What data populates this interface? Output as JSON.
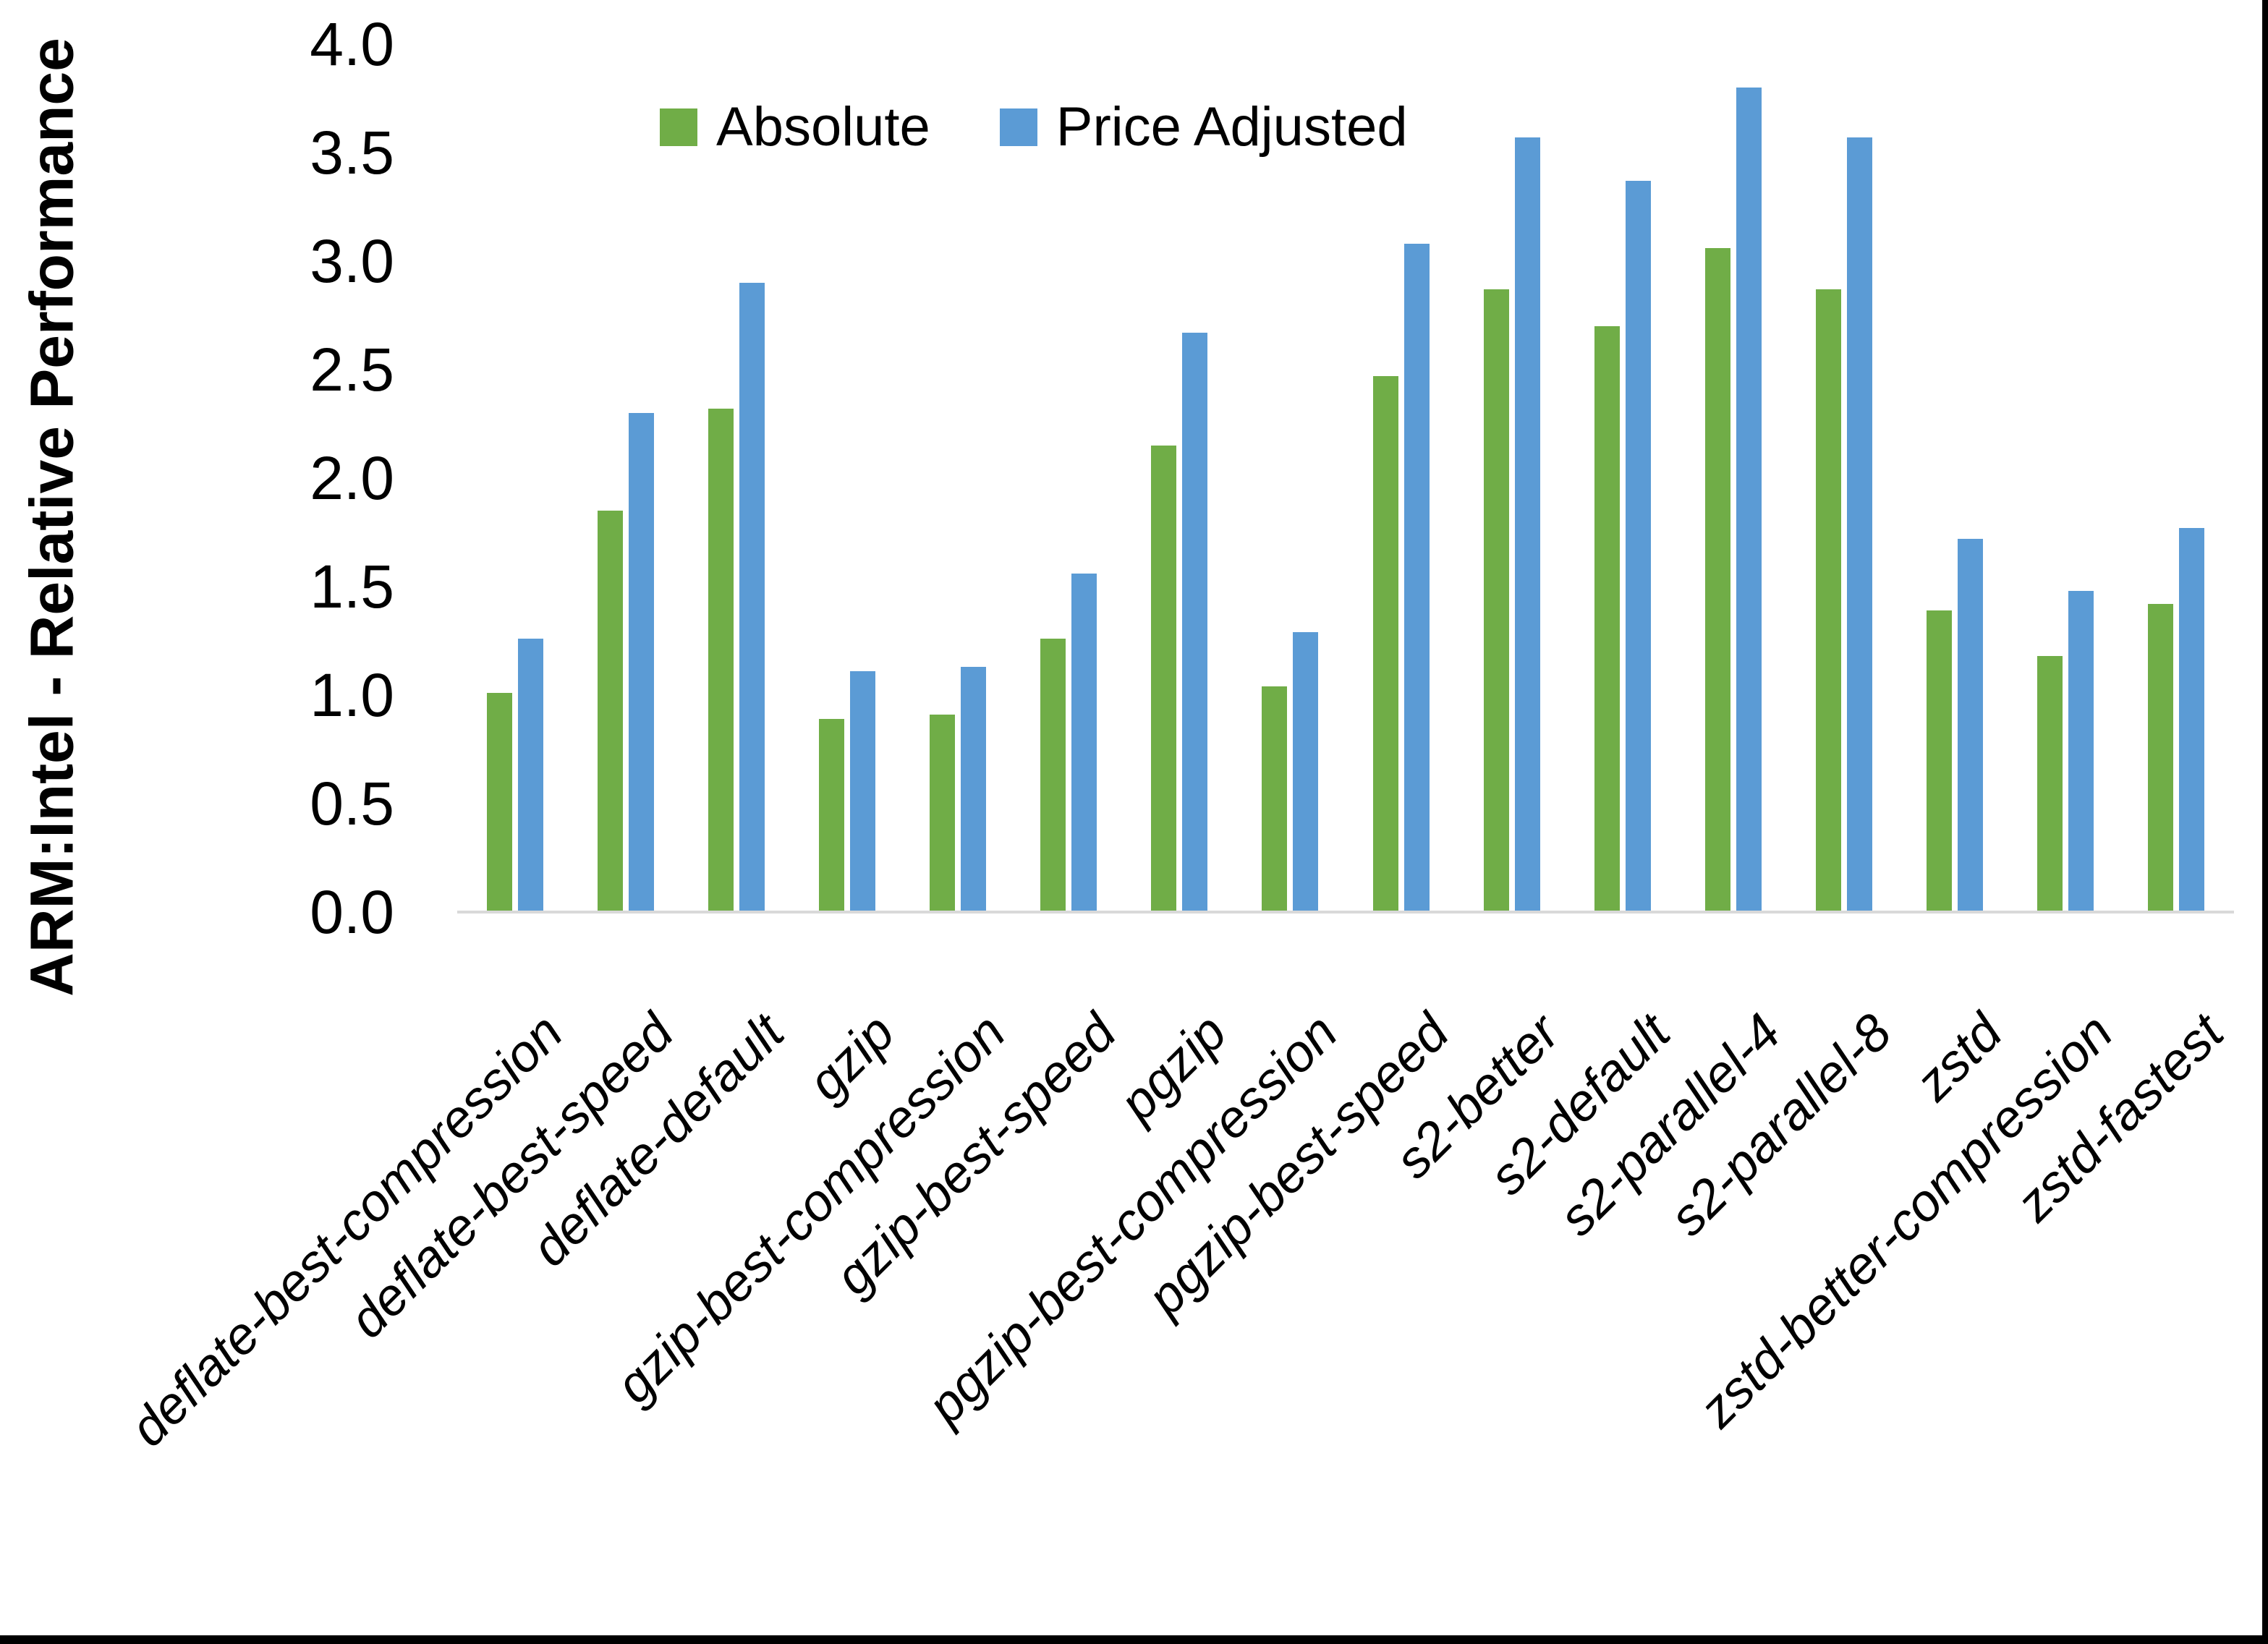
{
  "page": {
    "background": "#FFFFFF",
    "border_color": "#000000"
  },
  "chart_data": {
    "type": "bar",
    "title": "",
    "xlabel": "",
    "ylabel": "ARM:Intel - Relative Performance",
    "ylim": [
      0.0,
      4.0
    ],
    "ytick_step": 0.5,
    "yticks": [
      "0.0",
      "0.5",
      "1.0",
      "1.5",
      "2.0",
      "2.5",
      "3.0",
      "3.5",
      "4.0"
    ],
    "grid": false,
    "legend_position": "top-center",
    "axis_line_color": "#D9D9D9",
    "text_color": "#000000",
    "categories": [
      "deflate-best-compression",
      "deflate-best-speed",
      "deflate-default",
      "gzip",
      "gzip-best-compression",
      "gzip-best-speed",
      "pgzip",
      "pgzip-best-compression",
      "pgzip-best-speed",
      "s2-better",
      "s2-default",
      "s2-parallel-4",
      "s2-parallel-8",
      "zstd",
      "zstd-better-compression",
      "zstd-fastest"
    ],
    "series": [
      {
        "name": "Absolute",
        "color": "#70AD47",
        "values": [
          1.01,
          1.85,
          2.32,
          0.89,
          0.91,
          1.26,
          2.15,
          1.04,
          2.47,
          2.87,
          2.7,
          3.06,
          2.87,
          1.39,
          1.18,
          1.42
        ]
      },
      {
        "name": "Price Adjusted",
        "color": "#5B9BD5",
        "values": [
          1.26,
          2.3,
          2.9,
          1.11,
          1.13,
          1.56,
          2.67,
          1.29,
          3.08,
          3.57,
          3.37,
          3.8,
          3.57,
          1.72,
          1.48,
          1.77
        ]
      }
    ]
  }
}
